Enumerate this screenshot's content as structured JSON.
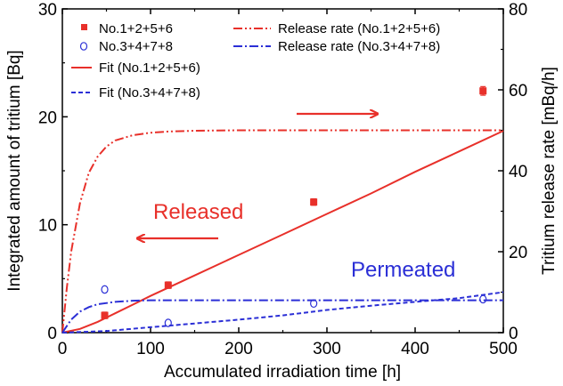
{
  "chart_data": {
    "type": "scatter",
    "xlabel": "Accumulated irradiation time [h]",
    "ylabel": "Integrated amount of tritium [Bq]",
    "y2label": "Tritium release rate [mBq/h]",
    "xlim": [
      0,
      500
    ],
    "ylim": [
      0,
      30
    ],
    "y2lim": [
      0,
      80
    ],
    "x_ticks": [
      0,
      100,
      200,
      300,
      400,
      500
    ],
    "y_ticks": [
      0,
      10,
      20,
      30
    ],
    "y2_ticks": [
      0,
      20,
      40,
      60,
      80
    ],
    "grid": false,
    "legend": "top",
    "annotations": {
      "released": "Released",
      "permeated": "Permeated"
    },
    "colors": {
      "red": "#e8302a",
      "blue": "#2b2fd6",
      "axis": "#000000"
    },
    "series": [
      {
        "name": "No.1+2+5+6",
        "kind": "points",
        "marker": "square-filled",
        "color": "#e8302a",
        "axis": "left",
        "x": [
          48,
          120,
          285,
          477
        ],
        "y": [
          1.6,
          4.4,
          12.1,
          22.4
        ],
        "yerr": [
          0.3,
          0.3,
          0.3,
          0.4
        ]
      },
      {
        "name": "No.3+4+7+8",
        "kind": "points",
        "marker": "circle-open",
        "color": "#2b2fd6",
        "axis": "left",
        "x": [
          48,
          120,
          285,
          477
        ],
        "y": [
          4.0,
          0.9,
          2.7,
          3.1
        ]
      },
      {
        "name": "Fit (No.1+2+5+6)",
        "kind": "line",
        "dash": "solid",
        "color": "#e8302a",
        "axis": "left",
        "x": [
          0,
          20,
          40,
          60,
          80,
          100,
          150,
          200,
          250,
          300,
          350,
          400,
          450,
          500
        ],
        "y": [
          0,
          0.35,
          1.0,
          1.8,
          2.6,
          3.4,
          5.3,
          7.2,
          9.1,
          11.0,
          12.9,
          14.9,
          16.8,
          18.7
        ]
      },
      {
        "name": "Fit (No.3+4+7+8)",
        "kind": "line",
        "dash": "dash",
        "color": "#2b2fd6",
        "axis": "left",
        "x": [
          0,
          50,
          100,
          150,
          200,
          250,
          300,
          350,
          400,
          450,
          500
        ],
        "y": [
          0,
          0.15,
          0.5,
          0.85,
          1.2,
          1.6,
          2.1,
          2.5,
          2.85,
          3.2,
          3.75
        ]
      },
      {
        "name": "Release rate (No.1+2+5+6)",
        "kind": "line",
        "dash": "dash-dot-dot",
        "color": "#e8302a",
        "axis": "right",
        "x": [
          0,
          5,
          10,
          20,
          30,
          40,
          50,
          60,
          80,
          100,
          120,
          150,
          200,
          300,
          400,
          500
        ],
        "y": [
          0,
          11,
          20,
          32,
          39.5,
          43.5,
          46,
          47.5,
          48.8,
          49.4,
          49.7,
          49.9,
          50,
          50,
          50,
          50
        ]
      },
      {
        "name": "Release rate (No.3+4+7+8)",
        "kind": "line",
        "dash": "dash-dot",
        "color": "#2b2fd6",
        "axis": "right",
        "x": [
          0,
          10,
          20,
          30,
          40,
          60,
          80,
          100,
          150,
          200,
          300,
          400,
          500
        ],
        "y": [
          0,
          3.2,
          5.2,
          6.3,
          7.0,
          7.6,
          7.9,
          8.0,
          8.0,
          8.0,
          8.0,
          8.0,
          8.0
        ]
      }
    ]
  }
}
